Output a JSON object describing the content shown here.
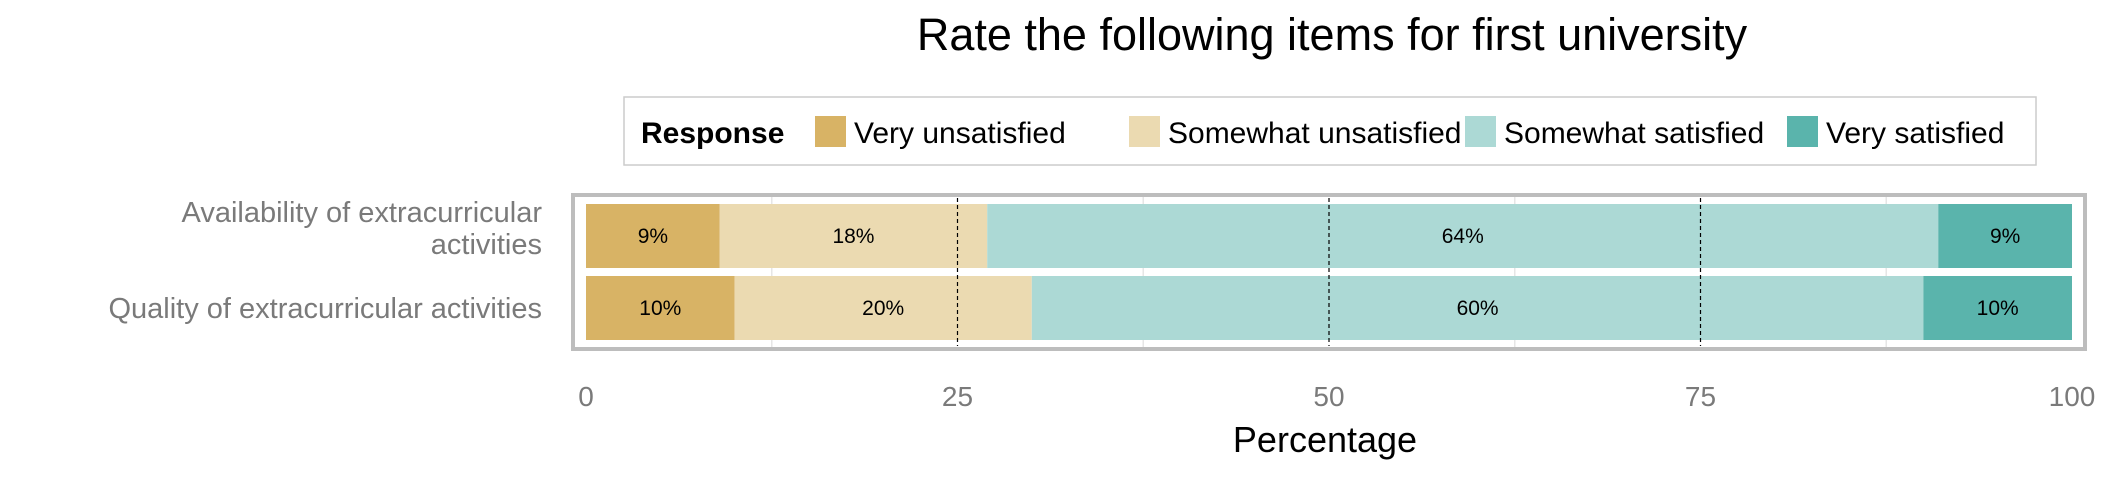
{
  "chart_data": {
    "type": "bar",
    "orientation": "horizontal",
    "stacked": true,
    "title": "Rate the following items for first university",
    "xlabel": "Percentage",
    "ylabel": "",
    "xlim": [
      0,
      100
    ],
    "x_ticks": [
      0,
      25,
      50,
      75,
      100
    ],
    "grid": true,
    "legend": {
      "title": "Response",
      "position": "top"
    },
    "categories": [
      "Availability of extracurricular activities",
      "Quality of extracurricular activities"
    ],
    "category_lines": [
      [
        "Availability of extracurricular",
        "activities"
      ],
      [
        "Quality of extracurricular activities"
      ]
    ],
    "series": [
      {
        "name": "Very unsatisfied",
        "color": "#d8b365",
        "values": [
          9,
          10
        ],
        "labels": [
          "9%",
          "10%"
        ]
      },
      {
        "name": "Somewhat unsatisfied",
        "color": "#ebdab1",
        "values": [
          18,
          20
        ],
        "labels": [
          "18%",
          "20%"
        ]
      },
      {
        "name": "Somewhat satisfied",
        "color": "#acd9d5",
        "values": [
          64,
          60
        ],
        "labels": [
          "64%",
          "60%"
        ]
      },
      {
        "name": "Very satisfied",
        "color": "#5ab4ac",
        "values": [
          9,
          10
        ],
        "labels": [
          "9%",
          "10%"
        ]
      }
    ]
  }
}
